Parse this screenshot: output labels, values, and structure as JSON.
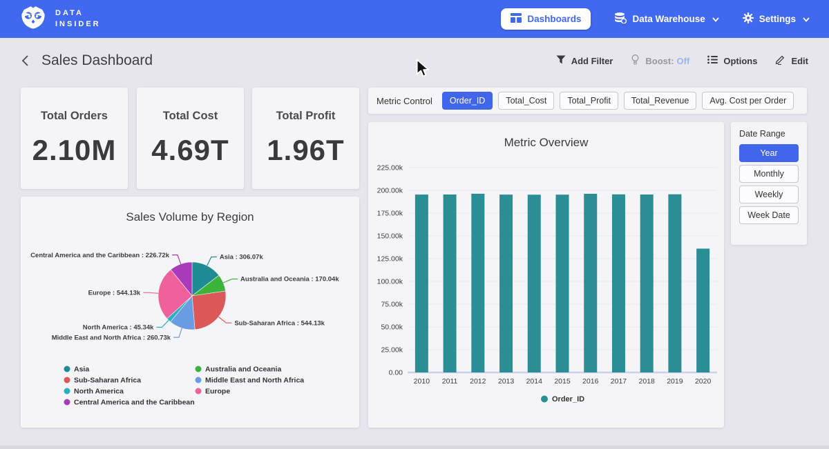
{
  "nav": {
    "brand_line1": "DATA",
    "brand_line2": "INSIDER",
    "dashboards_label": "Dashboards",
    "data_warehouse_label": "Data Warehouse",
    "settings_label": "Settings"
  },
  "header": {
    "title": "Sales Dashboard",
    "add_filter_label": "Add Filter",
    "boost_label": "Boost:",
    "boost_state": "Off",
    "options_label": "Options",
    "edit_label": "Edit"
  },
  "kpis": [
    {
      "label": "Total Orders",
      "value": "2.10M"
    },
    {
      "label": "Total Cost",
      "value": "4.69T"
    },
    {
      "label": "Total Profit",
      "value": "1.96T"
    }
  ],
  "metric_control": {
    "label": "Metric Control",
    "selected": "Order_ID",
    "options": [
      "Order_ID",
      "Total_Cost",
      "Total_Profit",
      "Total_Revenue",
      "Avg. Cost per Order"
    ]
  },
  "date_range": {
    "label": "Date Range",
    "selected": "Year",
    "options": [
      "Year",
      "Monthly",
      "Weekly",
      "Week Date"
    ]
  },
  "colors": {
    "nav_blue": "#4169f0",
    "accent_blue": "#4166ec",
    "bar_teal": "#2b8e95"
  },
  "chart_data": [
    {
      "type": "bar",
      "title": "Metric Overview",
      "categories": [
        "2010",
        "2011",
        "2012",
        "2013",
        "2014",
        "2015",
        "2016",
        "2017",
        "2018",
        "2019",
        "2020"
      ],
      "series": [
        {
          "name": "Order_ID",
          "color": "#2b8e95",
          "values": [
            195400,
            195450,
            196300,
            195350,
            195250,
            195300,
            196250,
            195600,
            195450,
            195700,
            136000
          ]
        }
      ],
      "xlabel": "",
      "ylabel": "",
      "ylim": [
        0,
        225000
      ],
      "tick_step": 25000,
      "grid": true,
      "legend_position": "bottom"
    },
    {
      "type": "pie",
      "title": "Sales Volume by Region",
      "slices": [
        {
          "label": "Asia",
          "value": 306070,
          "display": "Asia : 306.07k",
          "color": "#1e8d93"
        },
        {
          "label": "Australia and Oceania",
          "value": 170040,
          "display": "Australia and Oceania : 170.04k",
          "color": "#3cb43c"
        },
        {
          "label": "Sub-Saharan Africa",
          "value": 544130,
          "display": "Sub-Saharan Africa : 544.13k",
          "color": "#dc5757"
        },
        {
          "label": "Middle East and North Africa",
          "value": 260730,
          "display": "Middle East and North Africa : 260.73k",
          "color": "#699ce2"
        },
        {
          "label": "North America",
          "value": 45340,
          "display": "North America : 45.34k",
          "color": "#28b1c2"
        },
        {
          "label": "Europe",
          "value": 544130,
          "display": "Europe : 544.13k",
          "color": "#f0619b"
        },
        {
          "label": "Central America and the Caribbean",
          "value": 226720,
          "display": "Central America and the Caribbean : 226.72k",
          "color": "#a93bba"
        }
      ],
      "legend_columns": [
        [
          "Asia",
          "Sub-Saharan Africa",
          "North America",
          "Central America and the Caribbean"
        ],
        [
          "Australia and Oceania",
          "Middle East and North Africa",
          "Europe"
        ]
      ],
      "legend_position": "bottom"
    }
  ]
}
